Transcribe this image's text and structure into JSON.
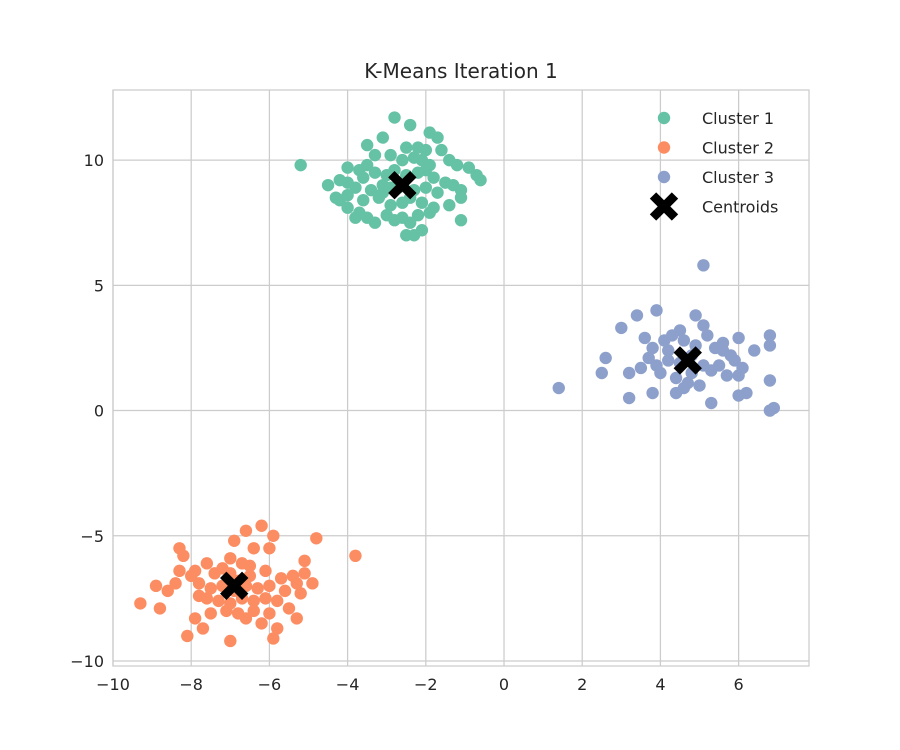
{
  "chart_data": {
    "type": "scatter",
    "title": "K-Means Iteration 1",
    "xlabel": "",
    "ylabel": "",
    "xlim": [
      -10,
      7.8
    ],
    "ylim": [
      -10.2,
      12.8
    ],
    "xticks": [
      -10,
      -8,
      -6,
      -4,
      -2,
      0,
      2,
      4,
      6
    ],
    "yticks": [
      -10,
      -5,
      0,
      5,
      10
    ],
    "grid": true,
    "legend_position": "top-right",
    "series": [
      {
        "name": "Cluster 1",
        "color": "#66c2a5",
        "points": [
          [
            -2.8,
            11.7
          ],
          [
            -2.4,
            11.4
          ],
          [
            -3.1,
            10.9
          ],
          [
            -3.5,
            10.6
          ],
          [
            -1.9,
            11.1
          ],
          [
            -1.7,
            10.9
          ],
          [
            -2.2,
            10.5
          ],
          [
            -2.0,
            10.4
          ],
          [
            -1.6,
            10.4
          ],
          [
            -2.5,
            10.5
          ],
          [
            -2.9,
            10.2
          ],
          [
            -3.3,
            10.2
          ],
          [
            -2.6,
            10.0
          ],
          [
            -2.3,
            10.1
          ],
          [
            -2.1,
            10.0
          ],
          [
            -1.4,
            10.0
          ],
          [
            -1.2,
            9.8
          ],
          [
            -0.9,
            9.7
          ],
          [
            -1.9,
            9.8
          ],
          [
            -3.5,
            9.8
          ],
          [
            -3.7,
            9.6
          ],
          [
            -4.0,
            9.7
          ],
          [
            -5.2,
            9.8
          ],
          [
            -0.7,
            9.4
          ],
          [
            -0.6,
            9.2
          ],
          [
            -4.2,
            9.2
          ],
          [
            -4.5,
            9.0
          ],
          [
            -4.0,
            9.1
          ],
          [
            -3.6,
            9.3
          ],
          [
            -3.3,
            9.5
          ],
          [
            -3.0,
            9.4
          ],
          [
            -2.8,
            9.6
          ],
          [
            -2.5,
            9.4
          ],
          [
            -2.2,
            9.5
          ],
          [
            -1.8,
            9.3
          ],
          [
            -1.5,
            9.1
          ],
          [
            -1.3,
            9.0
          ],
          [
            -3.8,
            8.9
          ],
          [
            -3.4,
            8.8
          ],
          [
            -3.1,
            8.7
          ],
          [
            -2.7,
            8.9
          ],
          [
            -2.3,
            8.8
          ],
          [
            -2.0,
            8.9
          ],
          [
            -1.7,
            8.7
          ],
          [
            -1.1,
            8.8
          ],
          [
            -1.1,
            8.5
          ],
          [
            -4.3,
            8.5
          ],
          [
            -4.0,
            8.6
          ],
          [
            -3.6,
            8.4
          ],
          [
            -3.2,
            8.5
          ],
          [
            -2.9,
            8.2
          ],
          [
            -2.6,
            8.3
          ],
          [
            -2.4,
            8.5
          ],
          [
            -2.1,
            8.3
          ],
          [
            -1.8,
            8.1
          ],
          [
            -1.4,
            8.2
          ],
          [
            -1.9,
            7.9
          ],
          [
            -4.0,
            8.1
          ],
          [
            -3.7,
            7.9
          ],
          [
            -3.5,
            7.7
          ],
          [
            -3.3,
            7.5
          ],
          [
            -3.0,
            7.8
          ],
          [
            -2.6,
            7.7
          ],
          [
            -2.4,
            7.5
          ],
          [
            -2.2,
            7.8
          ],
          [
            -1.1,
            7.6
          ],
          [
            -2.8,
            7.6
          ],
          [
            -2.5,
            7.0
          ],
          [
            -2.3,
            7.0
          ],
          [
            -2.1,
            7.2
          ],
          [
            -3.8,
            7.7
          ],
          [
            -2.9,
            8.9
          ],
          [
            -3.1,
            9.0
          ],
          [
            -2.0,
            9.6
          ],
          [
            -4.2,
            8.4
          ]
        ]
      },
      {
        "name": "Cluster 2",
        "color": "#fc8d62",
        "points": [
          [
            -6.2,
            -4.6
          ],
          [
            -5.9,
            -5.0
          ],
          [
            -6.6,
            -4.8
          ],
          [
            -6.9,
            -5.2
          ],
          [
            -4.8,
            -5.1
          ],
          [
            -5.1,
            -6.0
          ],
          [
            -3.8,
            -5.8
          ],
          [
            -8.3,
            -5.5
          ],
          [
            -8.2,
            -5.8
          ],
          [
            -6.4,
            -5.5
          ],
          [
            -6.0,
            -5.5
          ],
          [
            -7.0,
            -5.9
          ],
          [
            -6.7,
            -6.1
          ],
          [
            -7.6,
            -6.1
          ],
          [
            -7.9,
            -6.4
          ],
          [
            -8.3,
            -6.4
          ],
          [
            -8.0,
            -6.6
          ],
          [
            -7.4,
            -6.5
          ],
          [
            -7.0,
            -6.5
          ],
          [
            -6.5,
            -6.2
          ],
          [
            -6.1,
            -6.4
          ],
          [
            -5.7,
            -6.7
          ],
          [
            -5.4,
            -6.6
          ],
          [
            -5.1,
            -6.5
          ],
          [
            -5.3,
            -6.9
          ],
          [
            -4.9,
            -6.9
          ],
          [
            -8.4,
            -6.9
          ],
          [
            -8.9,
            -7.0
          ],
          [
            -8.6,
            -7.2
          ],
          [
            -7.8,
            -6.9
          ],
          [
            -7.5,
            -7.1
          ],
          [
            -7.2,
            -7.0
          ],
          [
            -6.9,
            -7.2
          ],
          [
            -6.6,
            -7.0
          ],
          [
            -6.3,
            -7.1
          ],
          [
            -6.0,
            -7.0
          ],
          [
            -5.6,
            -7.2
          ],
          [
            -5.2,
            -7.3
          ],
          [
            -9.3,
            -7.7
          ],
          [
            -8.8,
            -7.9
          ],
          [
            -7.6,
            -7.5
          ],
          [
            -7.3,
            -7.6
          ],
          [
            -7.0,
            -7.7
          ],
          [
            -6.7,
            -7.5
          ],
          [
            -6.4,
            -7.6
          ],
          [
            -6.1,
            -7.5
          ],
          [
            -5.8,
            -7.6
          ],
          [
            -7.9,
            -8.3
          ],
          [
            -7.5,
            -8.1
          ],
          [
            -7.1,
            -8.0
          ],
          [
            -6.8,
            -8.1
          ],
          [
            -6.4,
            -8.0
          ],
          [
            -6.0,
            -8.1
          ],
          [
            -5.3,
            -8.3
          ],
          [
            -7.7,
            -8.7
          ],
          [
            -6.2,
            -8.5
          ],
          [
            -5.8,
            -8.7
          ],
          [
            -8.1,
            -9.0
          ],
          [
            -7.0,
            -9.2
          ],
          [
            -5.9,
            -9.1
          ],
          [
            -6.5,
            -6.6
          ],
          [
            -7.2,
            -6.3
          ],
          [
            -6.8,
            -6.8
          ],
          [
            -7.8,
            -7.4
          ],
          [
            -5.5,
            -7.9
          ],
          [
            -6.6,
            -8.3
          ]
        ]
      },
      {
        "name": "Cluster 3",
        "color": "#8da0cb",
        "points": [
          [
            5.1,
            5.8
          ],
          [
            3.9,
            4.0
          ],
          [
            3.4,
            3.8
          ],
          [
            4.9,
            3.8
          ],
          [
            5.1,
            3.4
          ],
          [
            3.0,
            3.3
          ],
          [
            4.5,
            3.2
          ],
          [
            4.3,
            3.0
          ],
          [
            3.6,
            2.9
          ],
          [
            5.2,
            3.0
          ],
          [
            6.0,
            2.9
          ],
          [
            6.8,
            3.0
          ],
          [
            5.6,
            2.7
          ],
          [
            4.9,
            2.6
          ],
          [
            4.6,
            2.8
          ],
          [
            4.1,
            2.8
          ],
          [
            3.8,
            2.5
          ],
          [
            4.2,
            2.4
          ],
          [
            5.4,
            2.5
          ],
          [
            5.8,
            2.2
          ],
          [
            6.4,
            2.4
          ],
          [
            6.8,
            2.6
          ],
          [
            2.6,
            2.1
          ],
          [
            3.7,
            2.1
          ],
          [
            3.9,
            1.8
          ],
          [
            4.2,
            2.0
          ],
          [
            4.5,
            1.9
          ],
          [
            5.1,
            1.8
          ],
          [
            5.5,
            1.8
          ],
          [
            5.9,
            2.0
          ],
          [
            6.1,
            1.7
          ],
          [
            3.5,
            1.7
          ],
          [
            3.2,
            1.5
          ],
          [
            2.5,
            1.5
          ],
          [
            4.0,
            1.5
          ],
          [
            4.4,
            1.3
          ],
          [
            4.8,
            1.5
          ],
          [
            5.3,
            1.6
          ],
          [
            5.7,
            1.4
          ],
          [
            6.0,
            1.4
          ],
          [
            6.8,
            1.2
          ],
          [
            4.7,
            1.1
          ],
          [
            5.0,
            1.0
          ],
          [
            4.6,
            0.9
          ],
          [
            4.4,
            0.7
          ],
          [
            3.8,
            0.7
          ],
          [
            3.2,
            0.5
          ],
          [
            5.3,
            0.3
          ],
          [
            6.0,
            0.6
          ],
          [
            6.2,
            0.7
          ],
          [
            6.9,
            0.1
          ],
          [
            6.8,
            0.0
          ],
          [
            1.4,
            0.9
          ],
          [
            5.6,
            2.4
          ],
          [
            4.8,
            2.2
          ]
        ]
      }
    ],
    "centroids": {
      "name": "Centroids",
      "color": "#000000",
      "points": [
        [
          -2.6,
          9.0
        ],
        [
          -6.9,
          -7.0
        ],
        [
          4.7,
          2.0
        ]
      ]
    }
  }
}
